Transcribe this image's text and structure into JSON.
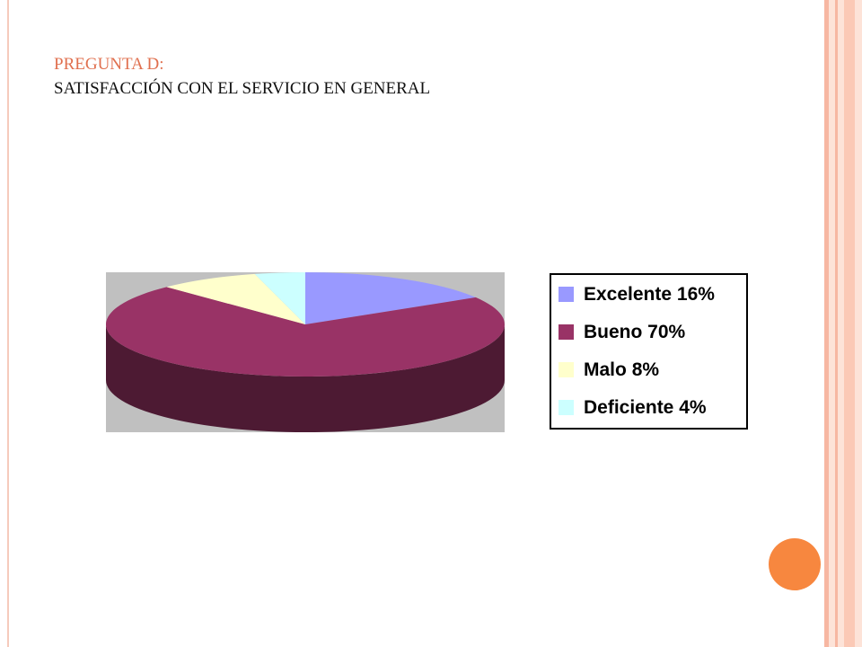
{
  "chart_data": {
    "type": "pie",
    "title": "PREGUNTA D:",
    "subtitle": "SATISFACCIÓN CON EL SERVICIO EN GENERAL",
    "categories": [
      "Excelente",
      "Bueno",
      "Malo",
      "Deficiente"
    ],
    "values": [
      16,
      70,
      8,
      4
    ],
    "value_labels": [
      "16%",
      "70%",
      "8%",
      "4%"
    ],
    "colors": [
      "#9999ff",
      "#993366",
      "#ffffcc",
      "#ccffff"
    ]
  }
}
